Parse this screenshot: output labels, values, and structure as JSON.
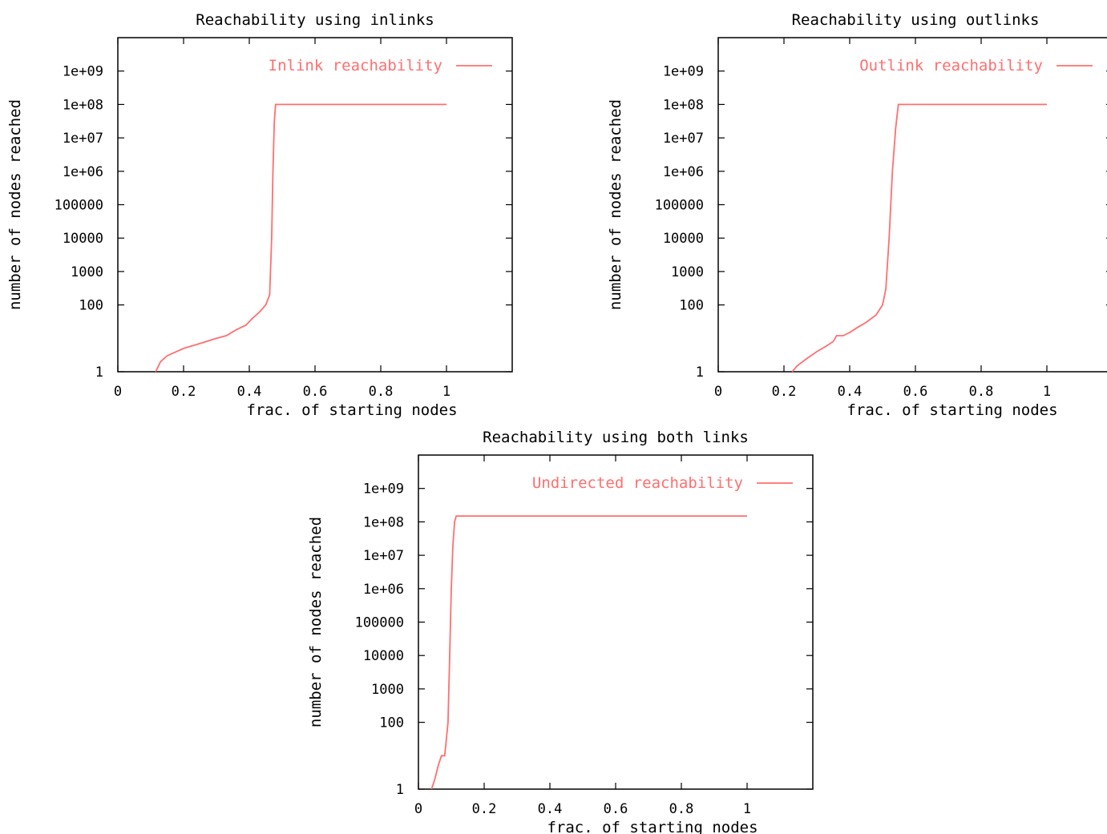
{
  "colors": {
    "series": "#ff6f6f",
    "axis": "#000000"
  },
  "chart_data": [
    {
      "type": "line",
      "title": "Reachability using inlinks",
      "xlabel": "frac. of starting nodes",
      "ylabel": "number of nodes reached",
      "xlim": [
        0,
        1.2
      ],
      "ylim": [
        1,
        10000000000
      ],
      "yscale": "log",
      "grid": false,
      "legend": "top-right",
      "x_ticks": [
        "0",
        "0.2",
        "0.4",
        "0.6",
        "0.8",
        "1"
      ],
      "y_ticks": [
        "1",
        "100",
        "1000",
        "10000",
        "100000",
        "1e+06",
        "1e+07",
        "1e+08",
        "1e+09"
      ],
      "series": [
        {
          "name": "Inlink reachability",
          "x": [
            0.115,
            0.13,
            0.15,
            0.2,
            0.25,
            0.3,
            0.33,
            0.36,
            0.39,
            0.41,
            0.43,
            0.45,
            0.462,
            0.468,
            0.472,
            0.476,
            0.48,
            1.0
          ],
          "y": [
            1,
            2,
            3,
            5,
            7,
            10,
            12,
            18,
            25,
            40,
            60,
            100,
            200,
            10000,
            1000000,
            30000000,
            100000000,
            100000000
          ]
        }
      ]
    },
    {
      "type": "line",
      "title": "Reachability using outlinks",
      "xlabel": "frac. of starting nodes",
      "ylabel": "number of nodes reached",
      "xlim": [
        0,
        1.2
      ],
      "ylim": [
        1,
        10000000000
      ],
      "yscale": "log",
      "grid": false,
      "legend": "top-right",
      "x_ticks": [
        "0",
        "0.2",
        "0.4",
        "0.6",
        "0.8",
        "1"
      ],
      "y_ticks": [
        "1",
        "100",
        "1000",
        "10000",
        "100000",
        "1e+06",
        "1e+07",
        "1e+08",
        "1e+09"
      ],
      "series": [
        {
          "name": "Outlink reachability",
          "x": [
            0.225,
            0.24,
            0.27,
            0.3,
            0.33,
            0.35,
            0.36,
            0.38,
            0.4,
            0.42,
            0.45,
            0.48,
            0.5,
            0.51,
            0.52,
            0.53,
            0.54,
            0.548,
            1.0
          ],
          "y": [
            1,
            1.5,
            2.5,
            4,
            6,
            8,
            12,
            12,
            15,
            20,
            30,
            50,
            100,
            300,
            10000,
            1000000,
            20000000,
            100000000,
            100000000
          ]
        }
      ]
    },
    {
      "type": "line",
      "title": "Reachability using both links",
      "xlabel": "frac. of starting nodes",
      "ylabel": "number of nodes reached",
      "xlim": [
        0,
        1.2
      ],
      "ylim": [
        1,
        10000000000
      ],
      "yscale": "log",
      "grid": false,
      "legend": "top-right",
      "x_ticks": [
        "0",
        "0.2",
        "0.4",
        "0.6",
        "0.8",
        "1"
      ],
      "y_ticks": [
        "1",
        "100",
        "1000",
        "10000",
        "100000",
        "1e+06",
        "1e+07",
        "1e+08",
        "1e+09"
      ],
      "series": [
        {
          "name": "Undirected reachability",
          "x": [
            0.04,
            0.05,
            0.06,
            0.07,
            0.08,
            0.09,
            0.095,
            0.1,
            0.105,
            0.11,
            0.115,
            1.0
          ],
          "y": [
            1,
            2,
            5,
            10,
            10,
            100,
            10000,
            1000000,
            20000000,
            100000000,
            150000000,
            150000000
          ]
        }
      ]
    }
  ]
}
